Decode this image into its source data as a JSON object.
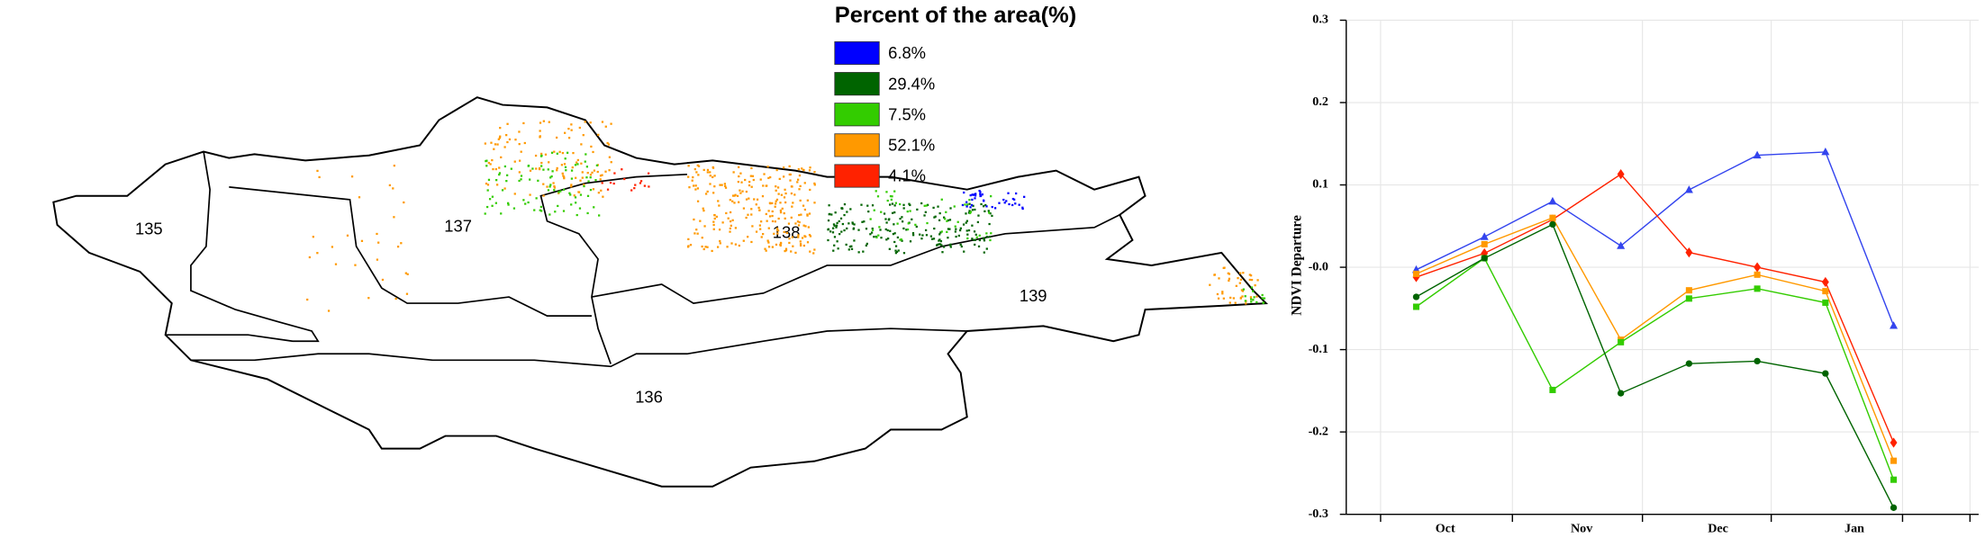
{
  "map": {
    "legend_title": "Percent of the area(%)",
    "legend": [
      {
        "label": "6.8%",
        "color": "#0000ff"
      },
      {
        "label": "29.4%",
        "color": "#006400"
      },
      {
        "label": "7.5%",
        "color": "#33cc00"
      },
      {
        "label": "52.1%",
        "color": "#ff9900"
      },
      {
        "label": "4.1%",
        "color": "#ff2200"
      }
    ],
    "regions": [
      "135",
      "137",
      "138",
      "139",
      "136"
    ]
  },
  "chart_data": {
    "type": "line",
    "y_label": "NDVI Departure",
    "categories": [
      "Oct",
      null,
      "Nov",
      null,
      "Dec",
      null,
      "Jan",
      null
    ],
    "series": [
      {
        "color": "#3344ee",
        "marker": "triangle",
        "values": [
          -0.003,
          0.037,
          0.08,
          0.026,
          0.094,
          0.136,
          0.14,
          -0.071
        ]
      },
      {
        "color": "#ff2200",
        "marker": "diamond",
        "values": [
          -0.012,
          0.017,
          0.058,
          0.113,
          0.018,
          0.0,
          -0.018,
          -0.213
        ]
      },
      {
        "color": "#ff9900",
        "marker": "square",
        "values": [
          -0.008,
          0.028,
          0.06,
          -0.088,
          -0.028,
          -0.009,
          -0.029,
          -0.235
        ]
      },
      {
        "color": "#33cc00",
        "marker": "square",
        "values": [
          -0.048,
          0.011,
          -0.149,
          -0.091,
          -0.038,
          -0.026,
          -0.043,
          -0.258
        ]
      },
      {
        "color": "#006400",
        "marker": "circle",
        "values": [
          -0.036,
          0.011,
          0.052,
          -0.153,
          -0.117,
          -0.114,
          -0.129,
          -0.292
        ]
      }
    ],
    "ylim": [
      -0.3,
      0.3
    ],
    "yticks": [
      -0.3,
      -0.2,
      -0.1,
      {
        "value": 0,
        "label": "-0.0"
      },
      0.1,
      0.2,
      0.3
    ],
    "grid": true
  }
}
